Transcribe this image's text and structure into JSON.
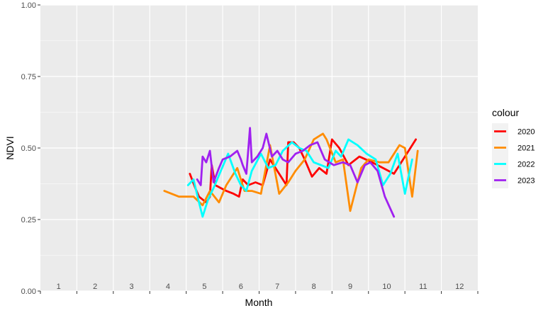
{
  "chart_data": {
    "type": "line",
    "title": "",
    "xlabel": "Month",
    "ylabel": "NDVI",
    "xlim": [
      0.5,
      12.5
    ],
    "ylim": [
      0,
      1
    ],
    "x_ticks": [
      "1",
      "2",
      "3",
      "4",
      "5",
      "6",
      "7",
      "8",
      "9",
      "10",
      "11",
      "12"
    ],
    "y_ticks": [
      "0.00",
      "0.25",
      "0.50",
      "0.75",
      "1.00"
    ],
    "grid": true,
    "legend": {
      "title": "colour",
      "position": "right"
    },
    "series": [
      {
        "name": "2020",
        "color": "#ff0000",
        "x": [
          4.6,
          4.75,
          4.85,
          5.05,
          5.15,
          5.2,
          5.3,
          5.45,
          5.6,
          5.8,
          5.95,
          6.05,
          6.2,
          6.4,
          6.6,
          6.8,
          7.05,
          7.25,
          7.3,
          7.45,
          7.6,
          7.75,
          7.95,
          8.15,
          8.35,
          8.5,
          8.7,
          8.95,
          9.25,
          9.6,
          9.9,
          10.2,
          10.5,
          10.8
        ],
        "y": [
          0.41,
          0.36,
          0.33,
          0.31,
          0.33,
          0.44,
          0.37,
          0.36,
          0.35,
          0.34,
          0.33,
          0.39,
          0.37,
          0.38,
          0.37,
          0.46,
          0.41,
          0.37,
          0.52,
          0.52,
          0.5,
          0.46,
          0.4,
          0.43,
          0.41,
          0.53,
          0.5,
          0.44,
          0.47,
          0.45,
          0.43,
          0.41,
          0.47,
          0.53
        ]
      },
      {
        "name": "2021",
        "color": "#ff8c00",
        "x": [
          3.9,
          4.3,
          4.7,
          4.95,
          5.15,
          5.4,
          5.6,
          5.9,
          6.1,
          6.3,
          6.55,
          6.8,
          7.05,
          7.3,
          7.5,
          7.75,
          8.0,
          8.25,
          8.35,
          8.6,
          8.8,
          9.0,
          9.3,
          9.5,
          9.8,
          10.05,
          10.35,
          10.5,
          10.7,
          10.85
        ],
        "y": [
          0.35,
          0.33,
          0.33,
          0.3,
          0.35,
          0.31,
          0.37,
          0.43,
          0.35,
          0.35,
          0.34,
          0.51,
          0.34,
          0.38,
          0.42,
          0.46,
          0.53,
          0.55,
          0.53,
          0.45,
          0.46,
          0.28,
          0.43,
          0.46,
          0.45,
          0.45,
          0.51,
          0.5,
          0.33,
          0.49
        ]
      },
      {
        "name": "2022",
        "color": "#00ffff",
        "x": [
          4.55,
          4.7,
          4.85,
          4.95,
          5.1,
          5.25,
          5.45,
          5.65,
          5.85,
          6.0,
          6.15,
          6.3,
          6.55,
          6.75,
          6.95,
          7.15,
          7.4,
          7.6,
          7.8,
          8.0,
          8.2,
          8.4,
          8.6,
          8.75,
          8.95,
          9.2,
          9.45,
          9.7,
          9.9,
          10.1,
          10.3,
          10.5,
          10.7
        ],
        "y": [
          0.37,
          0.39,
          0.31,
          0.26,
          0.32,
          0.36,
          0.42,
          0.48,
          0.41,
          0.37,
          0.35,
          0.42,
          0.48,
          0.43,
          0.44,
          0.49,
          0.52,
          0.5,
          0.49,
          0.45,
          0.44,
          0.43,
          0.49,
          0.47,
          0.53,
          0.51,
          0.48,
          0.46,
          0.37,
          0.41,
          0.48,
          0.34,
          0.46
        ]
      },
      {
        "name": "2023",
        "color": "#a020f0",
        "x": [
          4.8,
          4.9,
          4.95,
          5.05,
          5.1,
          5.15,
          5.25,
          5.4,
          5.5,
          5.7,
          5.9,
          6.0,
          6.05,
          6.15,
          6.2,
          6.25,
          6.3,
          6.45,
          6.6,
          6.7,
          6.85,
          7.0,
          7.15,
          7.3,
          7.5,
          7.7,
          7.9,
          8.1,
          8.3,
          8.55,
          8.8,
          9.0,
          9.2,
          9.4,
          9.55,
          9.75,
          9.95,
          10.2
        ],
        "y": [
          0.39,
          0.37,
          0.47,
          0.45,
          0.47,
          0.49,
          0.38,
          0.43,
          0.46,
          0.47,
          0.49,
          0.46,
          0.44,
          0.41,
          0.49,
          0.57,
          0.45,
          0.47,
          0.5,
          0.55,
          0.47,
          0.49,
          0.46,
          0.45,
          0.48,
          0.49,
          0.51,
          0.52,
          0.46,
          0.44,
          0.45,
          0.44,
          0.38,
          0.44,
          0.45,
          0.42,
          0.33,
          0.26
        ]
      }
    ]
  }
}
